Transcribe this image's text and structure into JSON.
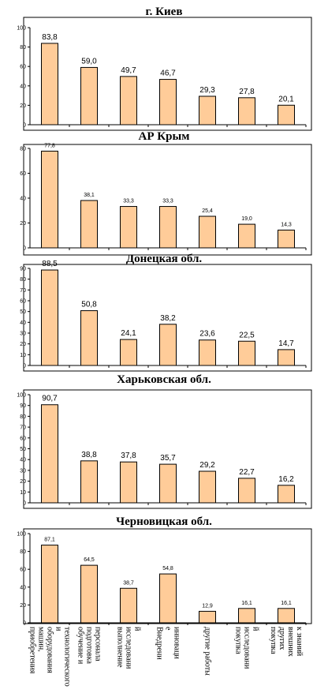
{
  "colors": {
    "bar_fill": "#FFCC99",
    "bar_stroke": "#000000",
    "frame": "#000000"
  },
  "categories": [
    [
      "приобретения",
      "машин,",
      "оборудования",
      "и",
      "технологического"
    ],
    [
      "обучение и",
      "подготовка",
      "персонала"
    ],
    [
      "выполнение",
      "исследовани",
      "й"
    ],
    [
      "Внедрени",
      "е",
      "инноваци"
    ],
    [
      "другие работы"
    ],
    [
      "покупка",
      "исследовани",
      "й"
    ],
    [
      "покупка",
      "других",
      "внешних",
      "к знаний"
    ]
  ],
  "chart_data": [
    {
      "type": "bar",
      "title": "г. Киев",
      "values": [
        83.8,
        59.0,
        49.7,
        46.7,
        29.3,
        27.8,
        20.1
      ],
      "value_labels": [
        "83,8",
        "59,0",
        "49,7",
        "46,7",
        "29,3",
        "27,8",
        "20,1"
      ],
      "ylim": [
        0,
        100
      ],
      "yticks": [
        "0",
        "20",
        "40",
        "60",
        "80",
        "100"
      ]
    },
    {
      "type": "bar",
      "title": "АР Крым",
      "values": [
        77.8,
        38.1,
        33.3,
        33.3,
        25.4,
        19.0,
        14.3
      ],
      "value_labels": [
        "77,8",
        "38,1",
        "33,3",
        "33,3",
        "25,4",
        "19,0",
        "14,3"
      ],
      "ylim": [
        0,
        80
      ],
      "yticks": [
        "0",
        "20",
        "40",
        "60",
        "80"
      ]
    },
    {
      "type": "bar",
      "title": "Донецкая обл.",
      "values": [
        88.5,
        50.8,
        24.1,
        38.2,
        23.6,
        22.5,
        14.7
      ],
      "value_labels": [
        "88,5",
        "50,8",
        "24,1",
        "38,2",
        "23,6",
        "22,5",
        "14,7"
      ],
      "ylim": [
        0,
        90
      ],
      "yticks": [
        "0",
        "10",
        "20",
        "30",
        "40",
        "50",
        "60",
        "70",
        "80",
        "90"
      ]
    },
    {
      "type": "bar",
      "title": "Харьковская обл.",
      "values": [
        90.7,
        38.8,
        37.8,
        35.7,
        29.2,
        22.7,
        16.2
      ],
      "value_labels": [
        "90,7",
        "38,8",
        "37,8",
        "35,7",
        "29,2",
        "22,7",
        "16,2"
      ],
      "ylim": [
        0,
        100
      ],
      "yticks": [
        "0",
        "10",
        "20",
        "30",
        "40",
        "50",
        "60",
        "70",
        "80",
        "90",
        "100"
      ]
    },
    {
      "type": "bar",
      "title": "Черновицкая обл.",
      "values": [
        87.1,
        64.5,
        38.7,
        54.8,
        12.9,
        16.1,
        16.1
      ],
      "value_labels": [
        "87,1",
        "64,5",
        "38,7",
        "54,8",
        "12,9",
        "16,1",
        "16,1"
      ],
      "ylim": [
        0,
        100
      ],
      "yticks": [
        "0",
        "20",
        "40",
        "60",
        "80",
        "100"
      ]
    }
  ]
}
